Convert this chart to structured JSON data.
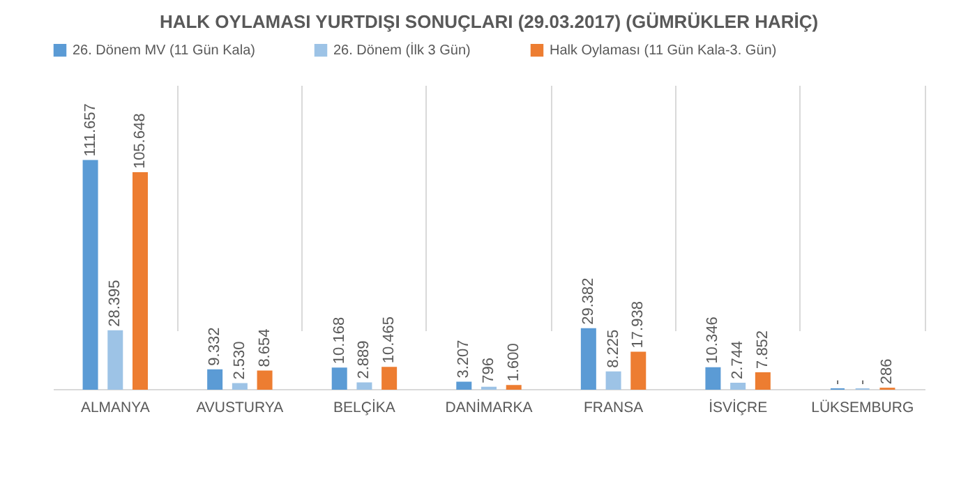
{
  "chart_data": {
    "type": "bar",
    "title": "HALK OYLAMASI YURTDIŞI SONUÇLARI (29.03.2017) (GÜMRÜKLER HARİÇ)",
    "categories": [
      "ALMANYA",
      "AVUSTURYA",
      "BELÇİKA",
      "DANİMARKA",
      "FRANSA",
      "İSVİÇRE",
      "LÜKSEMBURG"
    ],
    "series": [
      {
        "name": "26. Dönem MV (11 Gün Kala)",
        "color": "#5b9bd5",
        "values": [
          111657,
          9332,
          10168,
          3207,
          29382,
          10346,
          0
        ],
        "value_labels": [
          "111.657",
          "9.332",
          "10.168",
          "3.207",
          "29.382",
          "10.346",
          "-"
        ]
      },
      {
        "name": "26. Dönem (İlk 3 Gün)",
        "color": "#9dc3e6",
        "values": [
          28395,
          2530,
          2889,
          796,
          8225,
          2744,
          0
        ],
        "value_labels": [
          "28.395",
          "2.530",
          "2.889",
          "796",
          "8.225",
          "2.744",
          "-"
        ]
      },
      {
        "name": "Halk Oylaması (11 Gün Kala-3. Gün)",
        "color": "#ed7d31",
        "values": [
          105648,
          8654,
          10465,
          1600,
          17938,
          7852,
          286
        ],
        "value_labels": [
          "105.648",
          "8.654",
          "10.465",
          "1.600",
          "17.938",
          "7.852",
          "286"
        ]
      }
    ],
    "legend": "top",
    "grid": "x"
  }
}
